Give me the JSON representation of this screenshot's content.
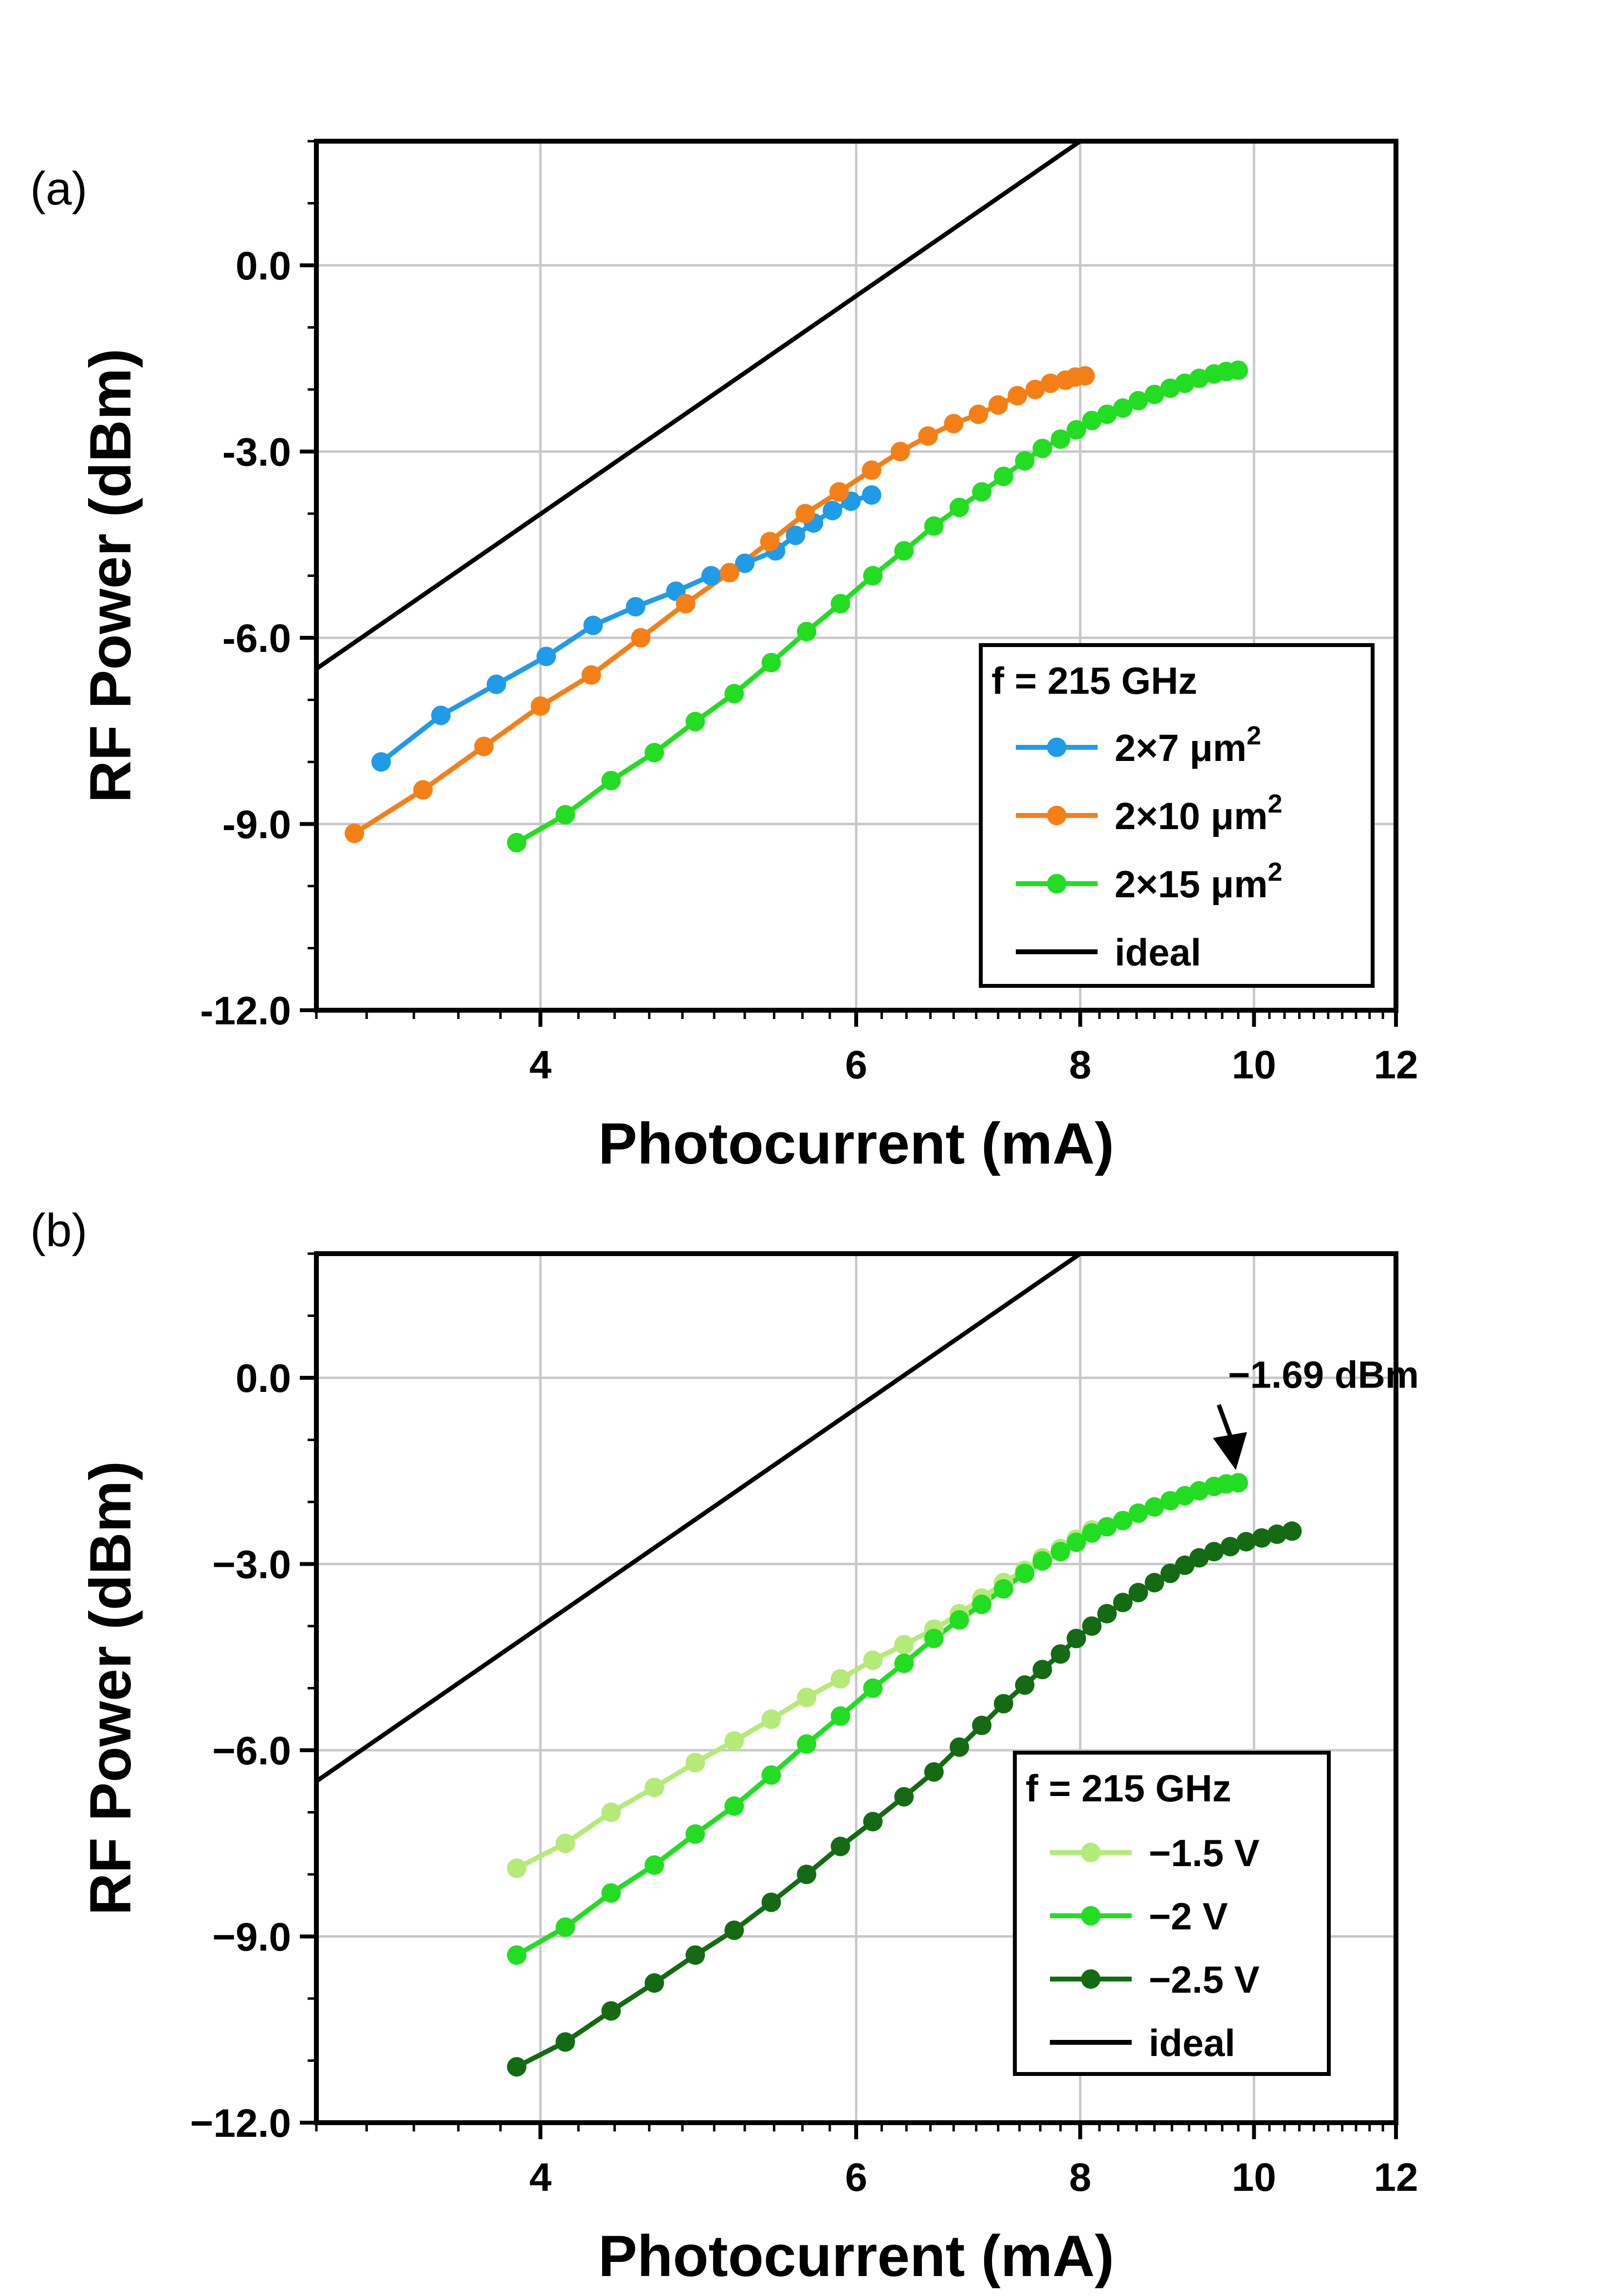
{
  "chart_data": [
    {
      "panel_label": "(a)",
      "type": "line",
      "xscale": "log",
      "xlim": [
        3.0,
        12.0
      ],
      "ylim": [
        -12.0,
        2.0
      ],
      "xticks": [
        4,
        6,
        8,
        10,
        12
      ],
      "xtick_labels": [
        "4",
        "6",
        "8",
        "10",
        "12"
      ],
      "yticks": [
        0.0,
        -3.0,
        -6.0,
        -9.0,
        -12.0
      ],
      "ytick_labels": [
        "0.0",
        "-3.0",
        "-6.0",
        "-9.0",
        "-12.0"
      ],
      "xlabel": "Photocurrent (mA)",
      "ylabel": "RF Power (dBm)",
      "grid": true,
      "legend_title": "f = 215 GHz",
      "legend_position": "bottom-right",
      "series": [
        {
          "name": "2×7 μm",
          "name_sup": "2",
          "color": "#1f9be8",
          "markers": true,
          "x": [
            3.26,
            3.52,
            3.78,
            4.03,
            4.28,
            4.52,
            4.76,
            4.98,
            5.2,
            5.41,
            5.55,
            5.68,
            5.82,
            5.96,
            6.12
          ],
          "y": [
            -8.0,
            -7.25,
            -6.75,
            -6.3,
            -5.8,
            -5.5,
            -5.25,
            -5.0,
            -4.8,
            -4.6,
            -4.35,
            -4.15,
            -3.95,
            -3.8,
            -3.7
          ]
        },
        {
          "name": "2×10 μm",
          "name_sup": "2",
          "color": "#f57f17",
          "markers": true,
          "x": [
            3.15,
            3.44,
            3.72,
            4.0,
            4.27,
            4.55,
            4.82,
            5.1,
            5.37,
            5.62,
            5.87,
            6.12,
            6.35,
            6.58,
            6.8,
            7.02,
            7.2,
            7.38,
            7.55,
            7.7,
            7.85,
            7.95,
            8.05
          ],
          "y": [
            -9.15,
            -8.45,
            -7.75,
            -7.1,
            -6.6,
            -6.0,
            -5.45,
            -4.95,
            -4.45,
            -4.0,
            -3.65,
            -3.3,
            -3.0,
            -2.75,
            -2.55,
            -2.4,
            -2.25,
            -2.1,
            -2.0,
            -1.9,
            -1.85,
            -1.8,
            -1.78
          ]
        },
        {
          "name": "2×15 μm",
          "name_sup": "2",
          "color": "#22dd22",
          "markers": true,
          "x": [
            3.88,
            4.13,
            4.38,
            4.63,
            4.88,
            5.13,
            5.38,
            5.63,
            5.88,
            6.13,
            6.38,
            6.63,
            6.85,
            7.05,
            7.25,
            7.45,
            7.62,
            7.8,
            7.96,
            8.12,
            8.28,
            8.45,
            8.62,
            8.8,
            8.98,
            9.15,
            9.32,
            9.5,
            9.65,
            9.8
          ],
          "y": [
            -9.3,
            -8.85,
            -8.3,
            -7.85,
            -7.35,
            -6.9,
            -6.4,
            -5.9,
            -5.45,
            -5.0,
            -4.6,
            -4.2,
            -3.9,
            -3.65,
            -3.4,
            -3.15,
            -2.95,
            -2.8,
            -2.65,
            -2.5,
            -2.4,
            -2.3,
            -2.18,
            -2.08,
            -1.98,
            -1.9,
            -1.82,
            -1.75,
            -1.71,
            -1.69
          ]
        },
        {
          "name": "ideal",
          "color": "#000000",
          "markers": false,
          "x": [
            3.0,
            8.0
          ],
          "y": [
            -6.5,
            2.0
          ]
        }
      ]
    },
    {
      "panel_label": "(b)",
      "type": "line",
      "xscale": "log",
      "xlim": [
        3.0,
        12.0
      ],
      "ylim": [
        -12.0,
        2.0
      ],
      "xticks": [
        4,
        6,
        8,
        10,
        12
      ],
      "xtick_labels": [
        "4",
        "6",
        "8",
        "10",
        "12"
      ],
      "yticks": [
        0.0,
        -3.0,
        -6.0,
        -9.0,
        -12.0
      ],
      "ytick_labels": [
        "0.0",
        "−3.0",
        "−6.0",
        "−9.0",
        "−12.0"
      ],
      "xlabel": "Photocurrent (mA)",
      "ylabel": "RF Power (dBm)",
      "grid": true,
      "legend_title": "f = 215 GHz",
      "legend_position": "bottom-right",
      "annotation": {
        "text": "−1.69 dBm",
        "x": 9.8,
        "y": -1.69
      },
      "series": [
        {
          "name": "−1.5 V",
          "color": "#b3ea78",
          "markers": true,
          "x": [
            3.88,
            4.13,
            4.38,
            4.63,
            4.88,
            5.13,
            5.38,
            5.63,
            5.88,
            6.13,
            6.38,
            6.63,
            6.85,
            7.05,
            7.25,
            7.45,
            7.62,
            7.8,
            7.96,
            8.12
          ],
          "y": [
            -7.9,
            -7.5,
            -7.0,
            -6.6,
            -6.2,
            -5.85,
            -5.5,
            -5.15,
            -4.85,
            -4.55,
            -4.3,
            -4.05,
            -3.8,
            -3.55,
            -3.3,
            -3.1,
            -2.9,
            -2.75,
            -2.6,
            -2.45
          ]
        },
        {
          "name": "−2 V",
          "color": "#22dd22",
          "markers": true,
          "x": [
            3.88,
            4.13,
            4.38,
            4.63,
            4.88,
            5.13,
            5.38,
            5.63,
            5.88,
            6.13,
            6.38,
            6.63,
            6.85,
            7.05,
            7.25,
            7.45,
            7.62,
            7.8,
            7.96,
            8.12,
            8.28,
            8.45,
            8.62,
            8.8,
            8.98,
            9.15,
            9.32,
            9.5,
            9.65,
            9.8
          ],
          "y": [
            -9.3,
            -8.85,
            -8.3,
            -7.85,
            -7.35,
            -6.9,
            -6.4,
            -5.9,
            -5.45,
            -5.0,
            -4.6,
            -4.2,
            -3.9,
            -3.65,
            -3.4,
            -3.15,
            -2.95,
            -2.8,
            -2.65,
            -2.5,
            -2.4,
            -2.3,
            -2.18,
            -2.08,
            -1.98,
            -1.9,
            -1.82,
            -1.75,
            -1.71,
            -1.69
          ]
        },
        {
          "name": "−2.5 V",
          "color": "#146b14",
          "markers": true,
          "x": [
            3.88,
            4.13,
            4.38,
            4.63,
            4.88,
            5.13,
            5.38,
            5.63,
            5.88,
            6.13,
            6.38,
            6.63,
            6.85,
            7.05,
            7.25,
            7.45,
            7.62,
            7.8,
            7.96,
            8.12,
            8.28,
            8.45,
            8.62,
            8.8,
            8.98,
            9.15,
            9.32,
            9.5,
            9.7,
            9.9,
            10.1,
            10.3,
            10.5
          ],
          "y": [
            -11.1,
            -10.7,
            -10.2,
            -9.75,
            -9.3,
            -8.9,
            -8.45,
            -8.0,
            -7.55,
            -7.15,
            -6.75,
            -6.35,
            -5.95,
            -5.6,
            -5.25,
            -4.95,
            -4.7,
            -4.45,
            -4.2,
            -4.0,
            -3.8,
            -3.62,
            -3.46,
            -3.3,
            -3.15,
            -3.02,
            -2.9,
            -2.8,
            -2.72,
            -2.64,
            -2.58,
            -2.52,
            -2.47
          ]
        },
        {
          "name": "ideal",
          "color": "#000000",
          "markers": false,
          "x": [
            3.0,
            8.0
          ],
          "y": [
            -6.5,
            2.0
          ]
        }
      ]
    }
  ]
}
